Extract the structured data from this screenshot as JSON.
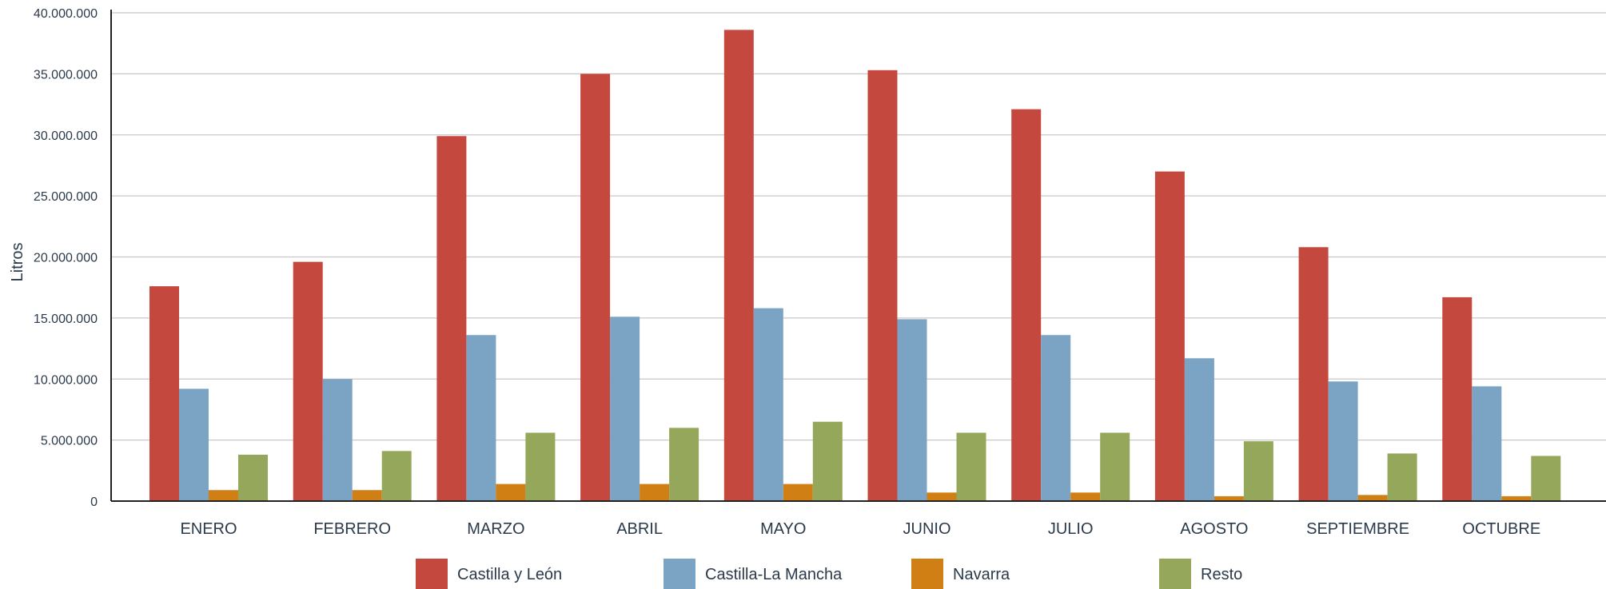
{
  "chart_data": {
    "type": "bar",
    "title": "",
    "xlabel": "",
    "ylabel": "Litros",
    "ylim": [
      0,
      40000000
    ],
    "yticks": [
      0,
      5000000,
      10000000,
      15000000,
      20000000,
      25000000,
      30000000,
      35000000,
      40000000
    ],
    "ytick_labels": [
      "0",
      "5.000.000",
      "10.000.000",
      "15.000.000",
      "20.000.000",
      "25.000.000",
      "30.000.000",
      "35.000.000",
      "40.000.000"
    ],
    "grid": true,
    "legend_position": "bottom",
    "categories": [
      "ENERO",
      "FEBRERO",
      "MARZO",
      "ABRIL",
      "MAYO",
      "JUNIO",
      "JULIO",
      "AGOSTO",
      "SEPTIEMBRE",
      "OCTUBRE"
    ],
    "series": [
      {
        "name": "Castilla y León",
        "color": "#c5483f",
        "values": [
          17600000,
          19600000,
          29900000,
          35000000,
          38600000,
          35300000,
          32100000,
          27000000,
          20800000,
          16700000
        ]
      },
      {
        "name": "Castilla-La Mancha",
        "color": "#7aa3c4",
        "values": [
          9200000,
          10000000,
          13600000,
          15100000,
          15800000,
          14900000,
          13600000,
          11700000,
          9800000,
          9400000
        ]
      },
      {
        "name": "Navarra",
        "color": "#cf7f14",
        "values": [
          900000,
          900000,
          1400000,
          1400000,
          1400000,
          700000,
          700000,
          400000,
          500000,
          400000
        ]
      },
      {
        "name": "Resto",
        "color": "#94a75a",
        "values": [
          3800000,
          4100000,
          5600000,
          6000000,
          6500000,
          5600000,
          5600000,
          4900000,
          3900000,
          3700000
        ]
      }
    ]
  }
}
